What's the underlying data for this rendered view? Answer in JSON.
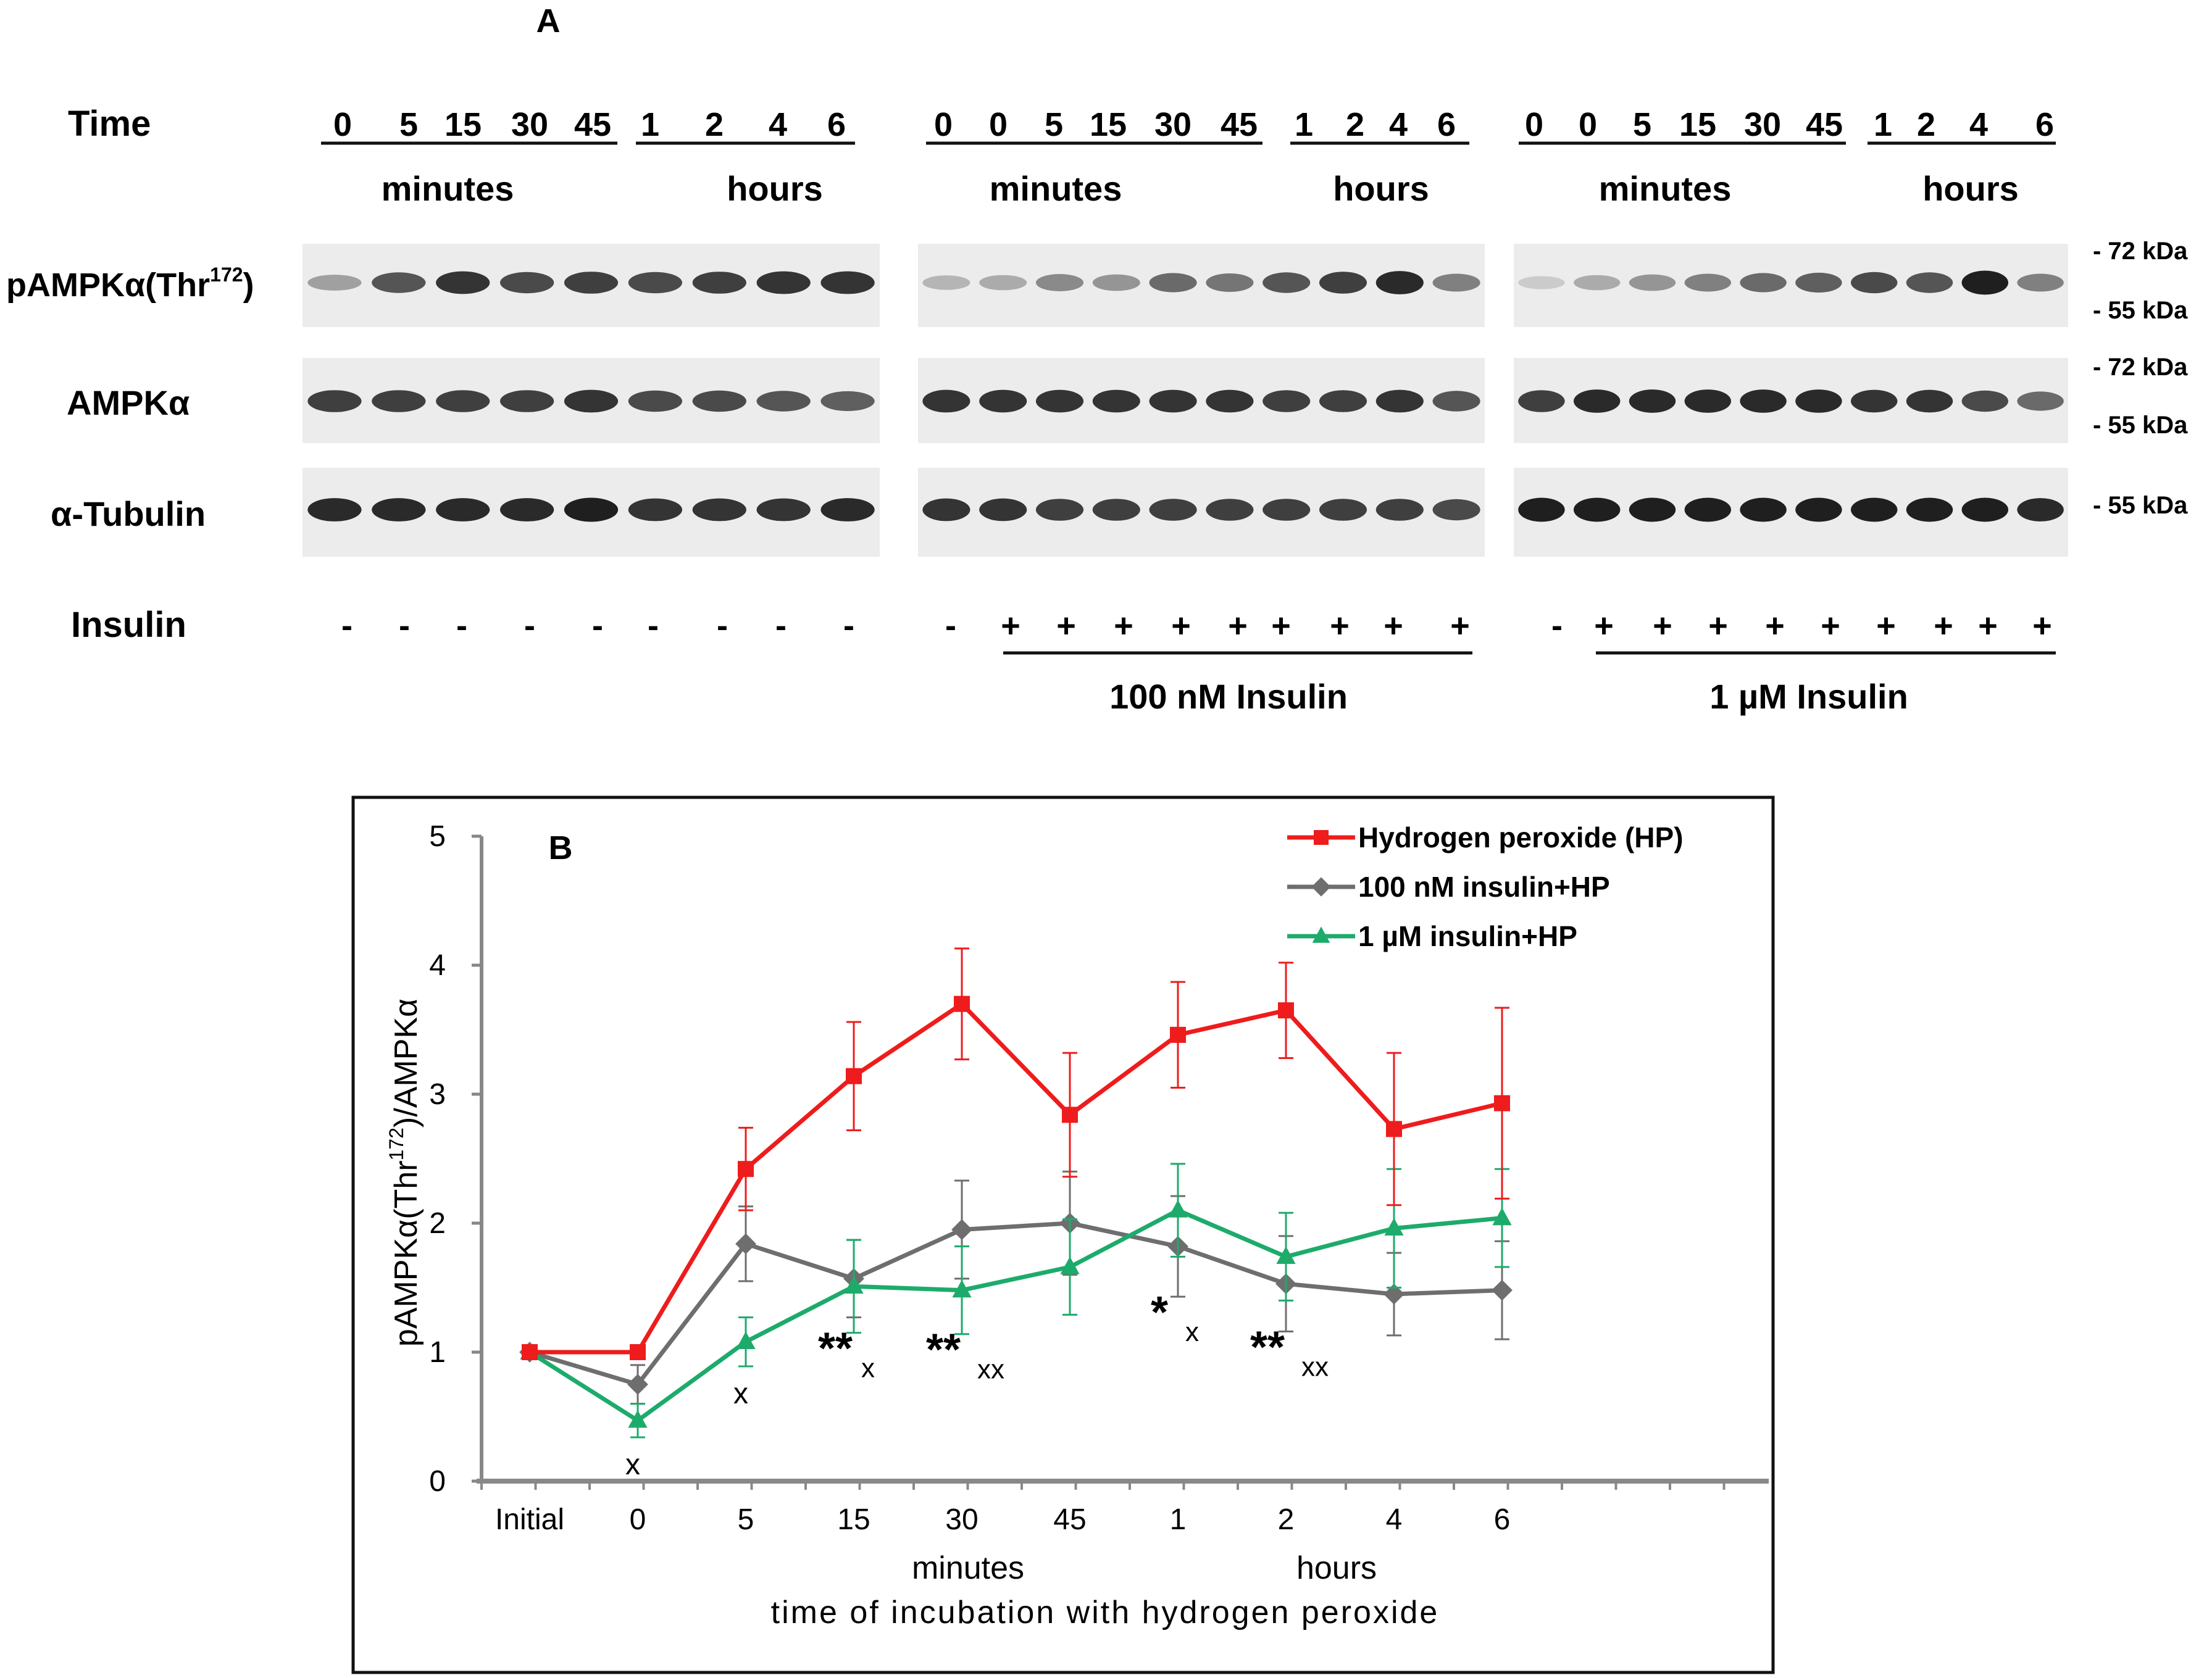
{
  "panel_a": {
    "label": "A",
    "time_label": "Time",
    "groups": [
      {
        "times": [
          "0",
          "5",
          "15",
          "30",
          "45",
          "1",
          "2",
          "4",
          "6"
        ],
        "minutes_label": "minutes",
        "hours_label": "hours",
        "insulin": [
          "-",
          "-",
          "-",
          "-",
          "-",
          "-",
          "-",
          "-",
          "-"
        ],
        "dose_label": ""
      },
      {
        "times": [
          "0",
          "0",
          "5",
          "15",
          "30",
          "45",
          "1",
          "2",
          "4",
          "6"
        ],
        "minutes_label": "minutes",
        "hours_label": "hours",
        "insulin": [
          "-",
          "+",
          "+",
          "+",
          "+",
          "+",
          "+",
          "+",
          "+",
          "+"
        ],
        "dose_label": "100 nM Insulin"
      },
      {
        "times": [
          "0",
          "0",
          "5",
          "15",
          "30",
          "45",
          "1",
          "2",
          "4",
          "6"
        ],
        "minutes_label": "minutes",
        "hours_label": "hours",
        "insulin": [
          "-",
          "+",
          "+",
          "+",
          "+",
          "+",
          "+",
          "+",
          "+",
          "+"
        ],
        "dose_label": "1 µM Insulin"
      }
    ],
    "rows": [
      {
        "label": "pAMPKα(Thr",
        "sup": "172",
        "suffix": ")",
        "markers": [
          "- 72 kDa",
          "- 55 kDa"
        ]
      },
      {
        "label": "AMPKα",
        "markers": [
          "- 72 kDa",
          "- 55 kDa"
        ]
      },
      {
        "label": "α-Tubulin",
        "markers": [
          "- 55 kDa"
        ]
      }
    ],
    "insulin_label": "Insulin",
    "band_intensity": {
      "pampk": [
        [
          0.35,
          0.7,
          0.85,
          0.75,
          0.8,
          0.75,
          0.8,
          0.85,
          0.85
        ],
        [
          0.25,
          0.3,
          0.45,
          0.4,
          0.6,
          0.55,
          0.7,
          0.8,
          0.9,
          0.5
        ],
        [
          0.15,
          0.3,
          0.4,
          0.5,
          0.6,
          0.65,
          0.75,
          0.7,
          0.95,
          0.5
        ]
      ],
      "ampk": [
        [
          0.8,
          0.8,
          0.8,
          0.8,
          0.85,
          0.75,
          0.75,
          0.7,
          0.65
        ],
        [
          0.85,
          0.85,
          0.85,
          0.85,
          0.85,
          0.85,
          0.8,
          0.8,
          0.85,
          0.7
        ],
        [
          0.8,
          0.9,
          0.9,
          0.9,
          0.9,
          0.9,
          0.85,
          0.85,
          0.75,
          0.6
        ]
      ],
      "tubulin": [
        [
          0.9,
          0.9,
          0.9,
          0.9,
          0.95,
          0.85,
          0.85,
          0.85,
          0.9
        ],
        [
          0.85,
          0.85,
          0.8,
          0.8,
          0.8,
          0.8,
          0.8,
          0.8,
          0.8,
          0.75
        ],
        [
          0.95,
          0.95,
          0.95,
          0.95,
          0.95,
          0.95,
          0.95,
          0.95,
          0.95,
          0.9
        ]
      ]
    }
  },
  "chart_data": {
    "type": "line",
    "panel_label": "B",
    "title": "",
    "ylabel": "pAMPKα(Thr",
    "ylabel_sup": "172",
    "ylabel_suffix": ")/AMPKα",
    "ylim": [
      0,
      5
    ],
    "yticks": [
      "0",
      "1",
      "2",
      "3",
      "4",
      "5"
    ],
    "categories": [
      "Initial",
      "0",
      "5",
      "15",
      "30",
      "45",
      "1",
      "2",
      "4",
      "6"
    ],
    "xgroup_labels": [
      "minutes",
      "hours"
    ],
    "xlabel": "time of incubation with hydrogen peroxide",
    "legend_position": "top-right",
    "series": [
      {
        "name": "Hydrogen peroxide (HP)",
        "color": "#ee1c1c",
        "marker": "square",
        "values": [
          1.0,
          1.0,
          2.42,
          3.14,
          3.7,
          2.84,
          3.46,
          3.65,
          2.73,
          2.93
        ],
        "errors": [
          0,
          0,
          0.32,
          0.42,
          0.43,
          0.48,
          0.41,
          0.37,
          0.59,
          0.74
        ]
      },
      {
        "name": "100 nM insulin+HP",
        "color": "#6e6e6e",
        "marker": "diamond",
        "values": [
          1.0,
          0.75,
          1.84,
          1.57,
          1.95,
          2.0,
          1.82,
          1.53,
          1.45,
          1.48
        ],
        "errors": [
          0,
          0.15,
          0.29,
          0.3,
          0.38,
          0.4,
          0.39,
          0.37,
          0.32,
          0.38
        ]
      },
      {
        "name": "1 µM insulin+HP",
        "color": "#1dab6b",
        "marker": "triangle",
        "values": [
          1.0,
          0.47,
          1.08,
          1.51,
          1.48,
          1.66,
          2.1,
          1.74,
          1.96,
          2.04
        ],
        "errors": [
          0,
          0.13,
          0.19,
          0.36,
          0.34,
          0.37,
          0.36,
          0.34,
          0.46,
          0.38
        ]
      }
    ],
    "annotations": [
      {
        "category": "0",
        "stars": "",
        "x_mark": "x"
      },
      {
        "category": "5",
        "stars": "",
        "x_mark": "x"
      },
      {
        "category": "15",
        "stars": "**",
        "x_mark": "x"
      },
      {
        "category": "30",
        "stars": "**",
        "x_mark": "xx"
      },
      {
        "category": "1",
        "stars": "*",
        "x_mark": "x"
      },
      {
        "category": "2",
        "stars": "**",
        "x_mark": "xx"
      }
    ]
  }
}
